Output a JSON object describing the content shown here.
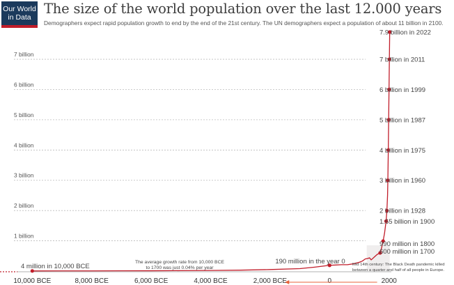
{
  "logo": {
    "line1": "Our World",
    "line2": "in Data"
  },
  "title": "The size of the world population over the last 12.000 years",
  "subtitle": "Demographers expect rapid population growth to end by the end of the 21st century. The UN demographers expect a population of about 11 billion in 2100.",
  "colors": {
    "line": "#c11d2a",
    "brand_bg": "#1b3a5c",
    "text": "#3d3d3d",
    "grid": "#bbbbbb",
    "arrow": "#e8623a"
  },
  "chart_data": {
    "type": "line",
    "title": "The size of the world population over the last 12.000 years",
    "xlim": [
      -10500,
      2030
    ],
    "ylim": [
      0,
      7.9
    ],
    "x_ticks": [
      {
        "value": -10000,
        "label": "10,000 BCE"
      },
      {
        "value": -8000,
        "label": "8,000 BCE"
      },
      {
        "value": -6000,
        "label": "6,000 BCE"
      },
      {
        "value": -4000,
        "label": "4,000 BCE"
      },
      {
        "value": -2000,
        "label": "2,000 BCE"
      },
      {
        "value": 0,
        "label": "0"
      },
      {
        "value": 2000,
        "label": "2000"
      }
    ],
    "y_ticks": [
      {
        "value": 1,
        "label": "1 billion"
      },
      {
        "value": 2,
        "label": "2 billion"
      },
      {
        "value": 3,
        "label": "3 billion"
      },
      {
        "value": 4,
        "label": "4 billion"
      },
      {
        "value": 5,
        "label": "5 billion"
      },
      {
        "value": 6,
        "label": "6 billion"
      },
      {
        "value": 7,
        "label": "7 billion"
      }
    ],
    "grid": true,
    "series": [
      {
        "x": [
          -10000,
          -9000,
          -8000,
          -7000,
          -6000,
          -5000,
          -4000,
          -3000,
          -2000,
          -1000,
          -500,
          0,
          200,
          400,
          600,
          800,
          1000,
          1100,
          1200,
          1300,
          1340,
          1400,
          1500,
          1600,
          1700,
          1750,
          1800,
          1850,
          1900,
          1928,
          1950,
          1960,
          1975,
          1987,
          1999,
          2011,
          2022
        ],
        "values": [
          0.004,
          0.005,
          0.006,
          0.008,
          0.01,
          0.014,
          0.02,
          0.03,
          0.05,
          0.08,
          0.13,
          0.19,
          0.2,
          0.21,
          0.21,
          0.24,
          0.29,
          0.33,
          0.4,
          0.42,
          0.44,
          0.37,
          0.46,
          0.55,
          0.6,
          0.77,
          0.99,
          1.26,
          1.65,
          2.0,
          2.5,
          3.0,
          4.0,
          5.0,
          6.0,
          7.0,
          7.9
        ]
      }
    ],
    "markers": [
      {
        "x": -10000,
        "y": 0.004,
        "label": "4 million in 10,000 BCE"
      },
      {
        "x": 0,
        "y": 0.19,
        "label": "190 million in the year 0"
      },
      {
        "x": 1700,
        "y": 0.6,
        "label": "600 million in 1700"
      },
      {
        "x": 1800,
        "y": 0.99,
        "label": "990 million in 1800"
      },
      {
        "x": 1900,
        "y": 1.65,
        "label": "1.65 billion in 1900"
      },
      {
        "x": 1928,
        "y": 2.0,
        "label": "2 billion in 1928"
      },
      {
        "x": 1960,
        "y": 3.0,
        "label": "3 billion in 1960"
      },
      {
        "x": 1975,
        "y": 4.0,
        "label": "4 billion in 1975"
      },
      {
        "x": 1987,
        "y": 5.0,
        "label": "5 billion in 1987"
      },
      {
        "x": 1999,
        "y": 6.0,
        "label": "6 billion in 1999"
      },
      {
        "x": 2011,
        "y": 7.0,
        "label": "7 billion in 2011"
      },
      {
        "x": 2022,
        "y": 7.9,
        "label": "7.9 billion in 2022"
      }
    ],
    "annotations": [
      {
        "id": "growth",
        "lines": [
          "The average growth rate from 10,000 BCE",
          "to 1700 was just  0.04% per year"
        ]
      },
      {
        "id": "black-death",
        "lines": [
          "Mid 14th century: The Black Death pandemic killed",
          "between a quarter and half of all people in Europe."
        ]
      }
    ]
  }
}
